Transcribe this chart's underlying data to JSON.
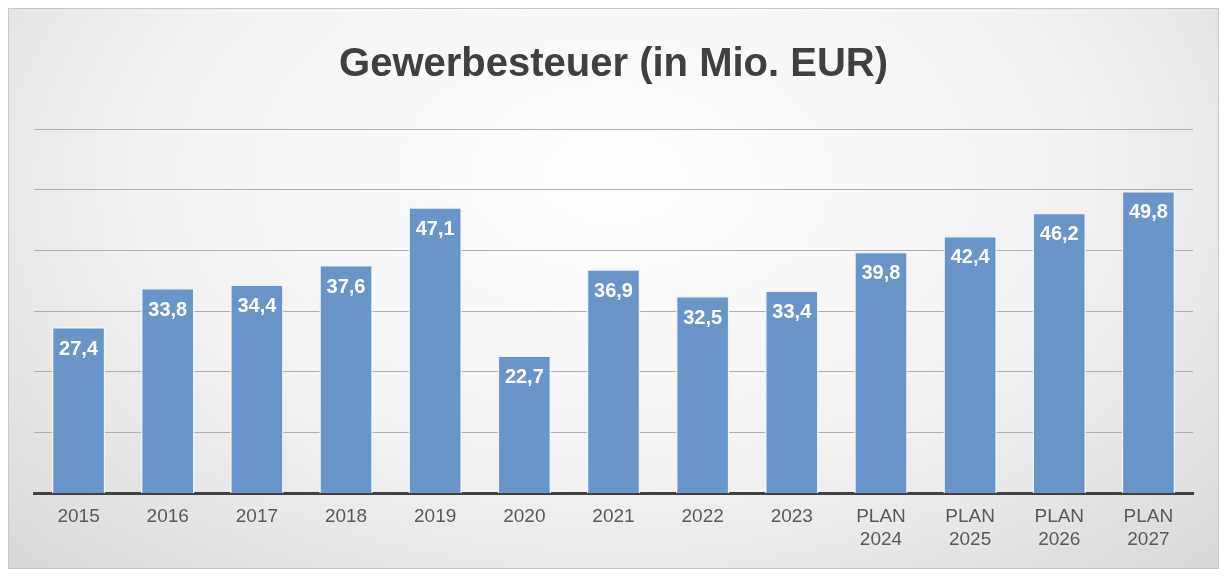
{
  "chart_data": {
    "type": "bar",
    "title": "Gewerbesteuer (in Mio. EUR)",
    "categories": [
      "2015",
      "2016",
      "2017",
      "2018",
      "2019",
      "2020",
      "2021",
      "2022",
      "2023",
      "PLAN 2024",
      "PLAN 2025",
      "PLAN 2026",
      "PLAN 2027"
    ],
    "values": [
      27.4,
      33.8,
      34.4,
      37.6,
      47.1,
      22.7,
      36.9,
      32.5,
      33.4,
      39.8,
      42.4,
      46.2,
      49.8
    ],
    "value_labels": [
      "27,4",
      "33,8",
      "34,4",
      "37,6",
      "47,1",
      "22,7",
      "36,9",
      "32,5",
      "33,4",
      "39,8",
      "42,4",
      "46,2",
      "49,8"
    ],
    "color": "#6a95c9",
    "ylim": [
      0,
      60
    ],
    "tick_labels": "x",
    "grid": "y",
    "legend": false
  }
}
